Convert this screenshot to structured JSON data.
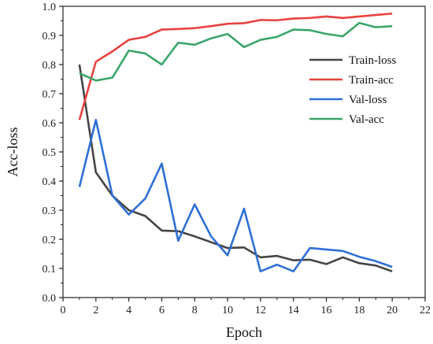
{
  "chart_data": {
    "type": "line",
    "title": "",
    "xlabel": "Epoch",
    "ylabel": "Acc-loss",
    "xlim": [
      0,
      22
    ],
    "ylim": [
      0.0,
      1.0
    ],
    "xticks": [
      0,
      2,
      4,
      6,
      8,
      10,
      12,
      14,
      16,
      18,
      20,
      22
    ],
    "yticks": [
      0.0,
      0.1,
      0.2,
      0.3,
      0.4,
      0.5,
      0.6,
      0.7,
      0.8,
      0.9,
      1.0
    ],
    "ytick_labels": [
      "0.0",
      "0.1",
      "0.2",
      "0.3",
      "0.4",
      "0.5",
      "0.6",
      "0.7",
      "0.8",
      "0.9",
      "1.0"
    ],
    "grid": false,
    "legend_position": "right",
    "x": [
      1,
      2,
      3,
      4,
      5,
      6,
      7,
      8,
      9,
      10,
      11,
      12,
      13,
      14,
      15,
      16,
      17,
      18,
      19,
      20
    ],
    "series": [
      {
        "name": "Train-loss",
        "color": "#454545",
        "values": [
          0.8,
          0.43,
          0.35,
          0.3,
          0.28,
          0.23,
          0.228,
          0.21,
          0.19,
          0.17,
          0.172,
          0.138,
          0.143,
          0.128,
          0.13,
          0.115,
          0.138,
          0.118,
          0.11,
          0.09
        ]
      },
      {
        "name": "Train-acc",
        "color": "#e8423f",
        "values": [
          0.61,
          0.81,
          0.845,
          0.885,
          0.895,
          0.92,
          0.922,
          0.925,
          0.932,
          0.94,
          0.942,
          0.953,
          0.952,
          0.958,
          0.96,
          0.965,
          0.96,
          0.965,
          0.97,
          0.975
        ]
      },
      {
        "name": "Val-loss",
        "color": "#2f6fd6",
        "values": [
          0.38,
          0.61,
          0.35,
          0.285,
          0.34,
          0.46,
          0.195,
          0.32,
          0.21,
          0.145,
          0.305,
          0.09,
          0.113,
          0.09,
          0.17,
          0.165,
          0.16,
          0.14,
          0.125,
          0.105
        ]
      },
      {
        "name": "Val-acc",
        "color": "#3aa56a",
        "values": [
          0.77,
          0.745,
          0.755,
          0.848,
          0.838,
          0.8,
          0.875,
          0.868,
          0.89,
          0.905,
          0.86,
          0.885,
          0.895,
          0.92,
          0.918,
          0.905,
          0.897,
          0.943,
          0.928,
          0.932
        ]
      }
    ]
  }
}
